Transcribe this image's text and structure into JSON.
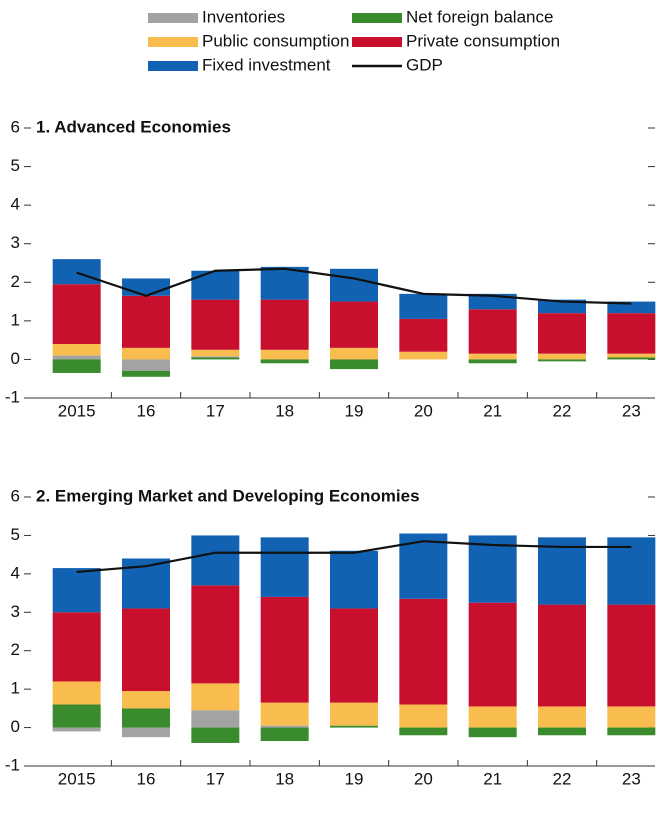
{
  "chart_data": [
    {
      "type": "bar",
      "stacked": true,
      "title": "1. Advanced Economies",
      "categories": [
        "2015",
        "16",
        "17",
        "18",
        "19",
        "20",
        "21",
        "22",
        "23"
      ],
      "ylim": [
        -1,
        6
      ],
      "yticks": [
        -1,
        0,
        1,
        2,
        3,
        4,
        5,
        6
      ],
      "series": [
        {
          "name": "Inventories",
          "color": "#a3a3a3",
          "values": [
            0.1,
            -0.3,
            0.03,
            0,
            0,
            0,
            0,
            0,
            0
          ]
        },
        {
          "name": "Public consumption",
          "color": "#f9bd4f",
          "values": [
            0.3,
            0.3,
            0.17,
            0.25,
            0.3,
            0.2,
            0.15,
            0.15,
            0.1
          ]
        },
        {
          "name": "Fixed investment",
          "color": "#1262b3",
          "values": [
            0.65,
            0.45,
            0.75,
            0.85,
            0.85,
            0.65,
            0.4,
            0.35,
            0.3
          ]
        },
        {
          "name": "Net foreign balance",
          "color": "#3a8a2e",
          "values": [
            -0.35,
            -0.15,
            0.05,
            -0.1,
            -0.25,
            0,
            -0.1,
            -0.05,
            0.05
          ]
        },
        {
          "name": "Private consumption",
          "color": "#c8102e",
          "values": [
            1.55,
            1.35,
            1.3,
            1.3,
            1.2,
            0.85,
            1.15,
            1.05,
            1.05
          ]
        },
        {
          "name": "GDP",
          "type": "line",
          "color": "#111111",
          "values": [
            2.25,
            1.65,
            2.3,
            2.35,
            2.1,
            1.7,
            1.65,
            1.5,
            1.45
          ]
        }
      ]
    },
    {
      "type": "bar",
      "stacked": true,
      "title": "2. Emerging Market and Developing Economies",
      "categories": [
        "2015",
        "16",
        "17",
        "18",
        "19",
        "20",
        "21",
        "22",
        "23"
      ],
      "ylim": [
        -1,
        6
      ],
      "yticks": [
        -1,
        0,
        1,
        2,
        3,
        4,
        5,
        6
      ],
      "series": [
        {
          "name": "Inventories",
          "color": "#a3a3a3",
          "values": [
            -0.1,
            -0.25,
            0.45,
            0.05,
            0,
            0,
            0,
            0,
            0
          ]
        },
        {
          "name": "Public consumption",
          "color": "#f9bd4f",
          "values": [
            0.6,
            0.45,
            0.7,
            0.6,
            0.6,
            0.6,
            0.55,
            0.55,
            0.55
          ]
        },
        {
          "name": "Fixed investment",
          "color": "#1262b3",
          "values": [
            1.15,
            1.3,
            1.3,
            1.55,
            1.5,
            1.7,
            1.75,
            1.75,
            1.75
          ]
        },
        {
          "name": "Net foreign balance",
          "color": "#3a8a2e",
          "values": [
            0.6,
            0.5,
            -0.4,
            -0.35,
            0.05,
            -0.2,
            -0.25,
            -0.2,
            -0.2
          ]
        },
        {
          "name": "Private consumption",
          "color": "#c8102e",
          "values": [
            1.8,
            2.15,
            2.55,
            2.75,
            2.45,
            2.75,
            2.7,
            2.65,
            2.65
          ]
        },
        {
          "name": "GDP",
          "type": "line",
          "color": "#111111",
          "values": [
            4.05,
            4.2,
            4.55,
            4.55,
            4.55,
            4.85,
            4.75,
            4.7,
            4.7
          ]
        }
      ]
    }
  ]
}
